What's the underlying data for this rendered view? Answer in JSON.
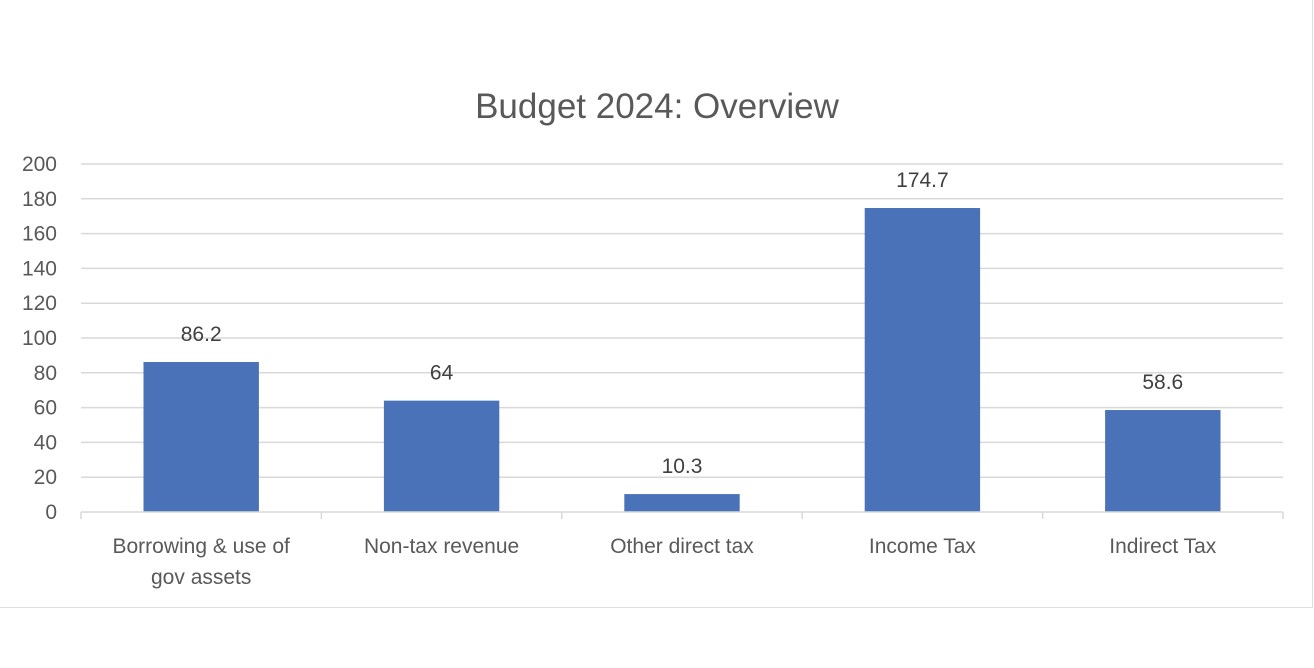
{
  "chart_data": {
    "type": "bar",
    "title": "Budget 2024: Overview",
    "xlabel": "",
    "ylabel": "",
    "categories": [
      [
        "Borrowing & use of",
        "gov assets"
      ],
      [
        "Non-tax revenue"
      ],
      [
        "Other direct tax"
      ],
      [
        "Income Tax"
      ],
      [
        "Indirect Tax"
      ]
    ],
    "values": [
      86.2,
      64,
      10.3,
      174.7,
      58.6
    ],
    "data_labels": [
      "86.2",
      "64",
      "10.3",
      "174.7",
      "58.6"
    ],
    "ylim": [
      0,
      200
    ],
    "yticks": [
      "0",
      "20",
      "40",
      "60",
      "80",
      "100",
      "120",
      "140",
      "160",
      "180",
      "200"
    ],
    "grid": true,
    "legend": "none",
    "bar_color": "#4a72b8"
  }
}
